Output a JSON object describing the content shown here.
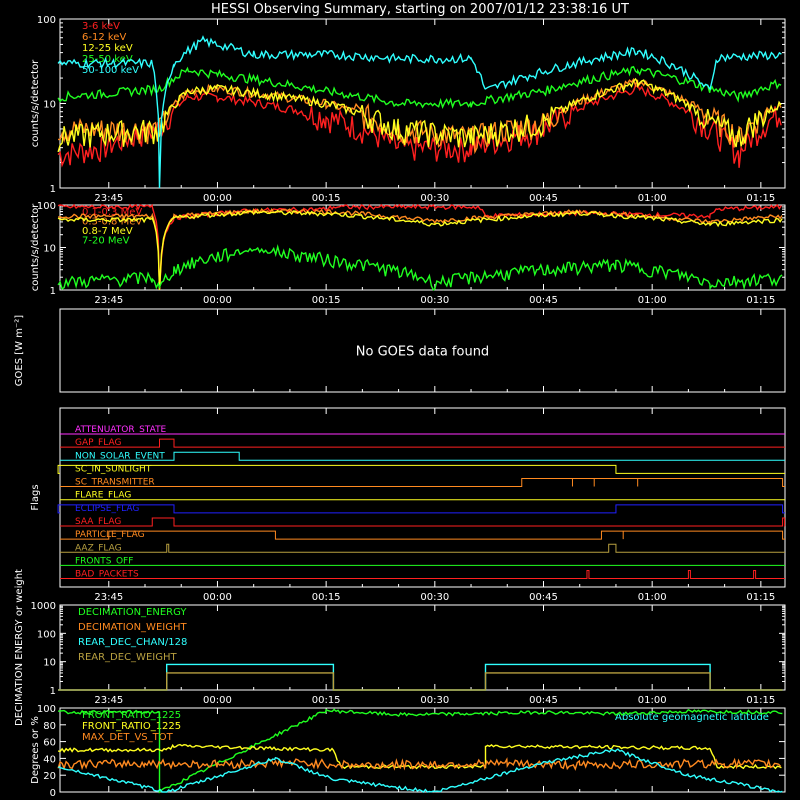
{
  "title": "HESSI Observing Summary, starting on 2007/01/12 23:38:16 UT",
  "colors": {
    "background": "#000000",
    "frame": "#ffffff",
    "red": "#ff2020",
    "orange": "#ff8a20",
    "yellow": "#ffff20",
    "green": "#20ff20",
    "cyan": "#30ffff",
    "magenta": "#ff30ff",
    "blue": "#2020ff",
    "olive": "#b8a040"
  },
  "x_axis": {
    "start": "23:38:16",
    "end": "01:18:20",
    "tick_labels": [
      "23:45",
      "00:00",
      "00:15",
      "00:30",
      "00:45",
      "01:00",
      "01:15"
    ]
  },
  "chart_data": [
    {
      "type": "line",
      "id": "count-rates-low",
      "ylabel": "counts/s/detector",
      "yscale": "log",
      "ylim": [
        1,
        100
      ],
      "ytick_labels": [
        "1",
        "10",
        "100"
      ],
      "series": [
        {
          "name": "3-6 keV",
          "color": "#ff2020",
          "x": [
            "23:38",
            "23:44",
            "23:52",
            "23:56",
            "00:00",
            "00:15",
            "00:25",
            "00:35",
            "00:45",
            "00:58",
            "01:08",
            "01:12",
            "01:18"
          ],
          "y": [
            2.5,
            3,
            5,
            12,
            12,
            7,
            3,
            3,
            5,
            15,
            5,
            2.5,
            8
          ]
        },
        {
          "name": "6-12 keV",
          "color": "#ff8a20",
          "x": [
            "23:38",
            "23:44",
            "23:52",
            "23:56",
            "00:00",
            "00:15",
            "00:25",
            "00:35",
            "00:45",
            "00:58",
            "01:08",
            "01:12",
            "01:18"
          ],
          "y": [
            5,
            5,
            5,
            14,
            15,
            10,
            5,
            4,
            6,
            18,
            7,
            4,
            10
          ]
        },
        {
          "name": "12-25 keV",
          "color": "#ffff20",
          "x": [
            "23:38",
            "23:44",
            "23:52",
            "23:56",
            "00:00",
            "00:15",
            "00:25",
            "00:35",
            "00:45",
            "00:58",
            "01:08",
            "01:12",
            "01:18"
          ],
          "y": [
            4,
            4.5,
            5,
            14,
            15,
            10,
            5,
            4,
            6,
            18,
            6,
            4,
            10
          ]
        },
        {
          "name": "25-50 keV",
          "color": "#20ff20",
          "x": [
            "23:38",
            "23:44",
            "23:52",
            "23:56",
            "00:00",
            "00:15",
            "00:25",
            "00:35",
            "00:45",
            "00:58",
            "01:08",
            "01:12",
            "01:18"
          ],
          "y": [
            12,
            13,
            15,
            25,
            22,
            14,
            10,
            10,
            14,
            25,
            15,
            12,
            18
          ]
        },
        {
          "name": "50-100 keV",
          "color": "#30ffff",
          "x": [
            "23:38",
            "23:44",
            "23:51",
            "23:52",
            "23:54",
            "23:58",
            "00:05",
            "00:16",
            "00:25",
            "00:35",
            "00:37",
            "00:45",
            "00:58",
            "01:08",
            "01:09",
            "01:18"
          ],
          "y": [
            30,
            30,
            30,
            1,
            30,
            55,
            38,
            38,
            34,
            34,
            14,
            24,
            42,
            14,
            35,
            38
          ]
        }
      ]
    },
    {
      "type": "line",
      "id": "count-rates-high",
      "ylabel": "counts/s/detector",
      "yscale": "log",
      "ylim": [
        1,
        100
      ],
      "ytick_labels": [
        "1",
        "10",
        "100"
      ],
      "series": [
        {
          "name": "0.1-0.3 MeV",
          "color": "#ff2020",
          "x": [
            "23:38",
            "23:51",
            "23:52",
            "23:54",
            "00:05",
            "00:15",
            "00:16",
            "00:36",
            "00:37",
            "00:50",
            "01:08",
            "01:09",
            "01:18"
          ],
          "y": [
            90,
            90,
            1,
            50,
            75,
            80,
            90,
            90,
            55,
            65,
            55,
            80,
            90
          ]
        },
        {
          "name": "0.3-0.8 MeV",
          "color": "#ff8a20",
          "x": [
            "23:38",
            "23:51",
            "23:52",
            "23:54",
            "00:05",
            "00:16",
            "00:30",
            "00:50",
            "01:08",
            "01:18"
          ],
          "y": [
            55,
            55,
            1,
            55,
            72,
            70,
            42,
            70,
            40,
            55
          ]
        },
        {
          "name": "0.8-7 MeV",
          "color": "#ffff20",
          "x": [
            "23:38",
            "23:51",
            "23:52",
            "23:54",
            "00:05",
            "00:16",
            "00:30",
            "00:50",
            "01:08",
            "01:18"
          ],
          "y": [
            45,
            45,
            1,
            50,
            68,
            62,
            35,
            65,
            35,
            45
          ]
        },
        {
          "name": "7-20 MeV",
          "color": "#20ff20",
          "x": [
            "23:38",
            "23:51",
            "23:52",
            "23:54",
            "00:05",
            "00:16",
            "00:30",
            "00:45",
            "00:55",
            "01:08",
            "01:18"
          ],
          "y": [
            1.5,
            2,
            1,
            3,
            9,
            5,
            1.5,
            3,
            4,
            1.5,
            2
          ]
        }
      ]
    },
    {
      "type": "line",
      "id": "goes",
      "ylabel": "GOES [W m⁻²]",
      "message": "No GOES data found",
      "series": []
    },
    {
      "type": "line",
      "id": "flags",
      "ylabel": "Flags",
      "series": [
        {
          "name": "ATTENUATOR_STATE",
          "color": "#ff30ff",
          "intervals": []
        },
        {
          "name": "GAP_FLAG",
          "color": "#ff2020",
          "intervals": [
            [
              "23:52",
              "23:54"
            ]
          ]
        },
        {
          "name": "NON_SOLAR_EVENT",
          "color": "#30ffff",
          "intervals": [
            [
              "23:54",
              "00:03"
            ]
          ]
        },
        {
          "name": "SC_IN_SUNLIGHT",
          "color": "#ffff20",
          "intervals": [
            [
              "23:38",
              "00:55"
            ]
          ]
        },
        {
          "name": "SC_TRANSMITTER",
          "color": "#ff8a20",
          "intervals": [
            [
              "00:42",
              "00:49"
            ],
            [
              "00:49",
              "00:52"
            ],
            [
              "00:52",
              "00:58"
            ],
            [
              "00:58",
              "01:18"
            ]
          ]
        },
        {
          "name": "FLARE_FLAG",
          "color": "#ffff20",
          "intervals": []
        },
        {
          "name": "ECLIPSE_FLAG",
          "color": "#2020ff",
          "intervals": [
            [
              "23:38",
              "23:54"
            ],
            [
              "00:55",
              "01:18"
            ]
          ]
        },
        {
          "name": "SAA_FLAG",
          "color": "#ff2020",
          "intervals": [
            [
              "23:51",
              "23:54"
            ],
            [
              "01:18",
              "01:18"
            ]
          ]
        },
        {
          "name": "PARTICLE_FLAG",
          "color": "#ff8a20",
          "intervals": [
            [
              "23:45",
              "00:08"
            ],
            [
              "00:53",
              "00:56"
            ],
            [
              "00:56",
              "01:18"
            ]
          ]
        },
        {
          "name": "AAZ_FLAG",
          "color": "#b8a040",
          "intervals": [
            [
              "23:53",
              "23:53"
            ],
            [
              "00:54",
              "00:55"
            ]
          ]
        },
        {
          "name": "FRONTS_OFF",
          "color": "#20ff20",
          "intervals": []
        },
        {
          "name": "BAD_PACKETS",
          "color": "#ff2020",
          "intervals": [
            [
              "00:51",
              "00:51"
            ],
            [
              "01:05",
              "01:05"
            ],
            [
              "01:14",
              "01:14"
            ]
          ]
        }
      ]
    },
    {
      "type": "line",
      "id": "decimation",
      "ylabel": "DECIMATION ENERGY or weight",
      "yscale": "log",
      "ylim": [
        1,
        1000
      ],
      "ytick_labels": [
        "1",
        "10",
        "100",
        "1000"
      ],
      "series": [
        {
          "name": "DECIMATION_ENERGY",
          "color": "#20ff20",
          "x": [],
          "y": []
        },
        {
          "name": "DECIMATION_WEIGHT",
          "color": "#ff8a20",
          "x": [],
          "y": []
        },
        {
          "name": "REAR_DEC_CHAN/128",
          "color": "#30ffff",
          "x": [
            "23:38",
            "23:53",
            "23:53",
            "00:16",
            "00:16",
            "00:37",
            "00:37",
            "01:08",
            "01:08",
            "01:18"
          ],
          "y": [
            1,
            1,
            8,
            8,
            1,
            1,
            8,
            8,
            1,
            1
          ]
        },
        {
          "name": "REAR_DEC_WEIGHT",
          "color": "#b8a040",
          "x": [
            "23:38",
            "23:53",
            "23:53",
            "00:16",
            "00:16",
            "00:37",
            "00:37",
            "01:08",
            "01:08",
            "01:18"
          ],
          "y": [
            1,
            1,
            4,
            4,
            1,
            1,
            4,
            4,
            1,
            1
          ]
        }
      ]
    },
    {
      "type": "line",
      "id": "ratios",
      "ylabel": "Degrees or %",
      "ylim": [
        0,
        100
      ],
      "ytick_labels": [
        "0",
        "20",
        "40",
        "60",
        "80",
        "100"
      ],
      "series": [
        {
          "name": "FRONT_RATIO_1225",
          "color": "#20ff20",
          "x": [
            "23:38",
            "23:52",
            "23:52",
            "00:15",
            "00:25",
            "00:35",
            "00:45",
            "00:55",
            "01:05",
            "01:18"
          ],
          "y": [
            95,
            95,
            0,
            97,
            92,
            93,
            95,
            93,
            96,
            95
          ]
        },
        {
          "name": "FRONT_RATIO_1225",
          "color": "#ffff20",
          "x": [
            "23:38",
            "23:53",
            "23:54",
            "00:16",
            "00:17",
            "00:37",
            "00:37",
            "01:08",
            "01:09",
            "01:18"
          ],
          "y": [
            50,
            50,
            55,
            50,
            30,
            30,
            55,
            52,
            30,
            30
          ]
        },
        {
          "name": "MAX_DET_VS_TOT",
          "color": "#ff8a20",
          "x": [
            "23:38",
            "23:50",
            "00:00",
            "00:10",
            "00:20",
            "00:30",
            "00:40",
            "00:50",
            "01:00",
            "01:10",
            "01:18"
          ],
          "y": [
            33,
            34,
            33,
            35,
            32,
            33,
            34,
            32,
            33,
            34,
            33
          ]
        },
        {
          "name": "Absolute geomagnetic latitude",
          "color": "#30ffff",
          "x": [
            "23:38",
            "23:53",
            "00:08",
            "00:16",
            "00:30",
            "00:45",
            "00:55",
            "01:05",
            "01:18"
          ],
          "y": [
            30,
            0,
            40,
            15,
            0,
            35,
            50,
            20,
            0
          ]
        }
      ]
    }
  ]
}
